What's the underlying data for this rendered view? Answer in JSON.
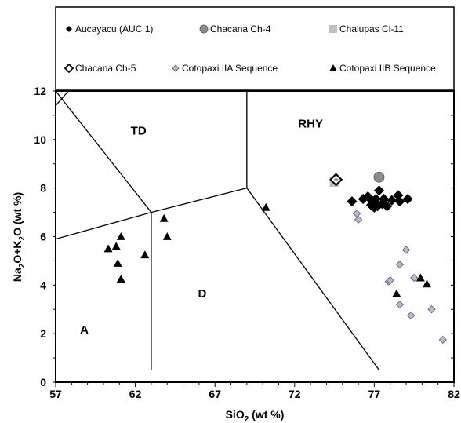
{
  "chart_data": {
    "type": "scatter",
    "xlabel": "SiO2 (wt %)",
    "ylabel": "Na2O+K2O (wt %)",
    "xlim": [
      57,
      82
    ],
    "ylim": [
      0,
      12
    ],
    "x_ticks": [
      "57",
      "62",
      "67",
      "72",
      "77",
      "82"
    ],
    "y_ticks": [
      "0",
      "2",
      "4",
      "6",
      "8",
      "10",
      "12"
    ],
    "grid": false,
    "legend_placement": "top",
    "field_labels": [
      {
        "text": "TD",
        "x": 62.2,
        "y": 10.2
      },
      {
        "text": "RHY",
        "x": 73.0,
        "y": 10.5
      },
      {
        "text": "D",
        "x": 66.2,
        "y": 3.5
      },
      {
        "text": "A",
        "x": 58.8,
        "y": 2.0
      }
    ],
    "field_boundaries": [
      [
        [
          57,
          12
        ],
        [
          63,
          7
        ]
      ],
      [
        [
          57,
          5.9
        ],
        [
          63,
          7
        ]
      ],
      [
        [
          63,
          7
        ],
        [
          63,
          0.5
        ]
      ],
      [
        [
          63,
          7
        ],
        [
          69,
          8
        ]
      ],
      [
        [
          69,
          8
        ],
        [
          69,
          12
        ]
      ],
      [
        [
          69,
          8
        ],
        [
          77.3,
          0.5
        ]
      ],
      [
        [
          57,
          11.4
        ],
        [
          57.8,
          12
        ]
      ]
    ],
    "series": [
      {
        "name": "Aucayacu (AUC 1)",
        "marker": "diamond",
        "color": "#000000",
        "points": [
          [
            75.6,
            7.45
          ],
          [
            76.3,
            7.55
          ],
          [
            76.6,
            7.65
          ],
          [
            76.9,
            7.45
          ],
          [
            77.1,
            7.55
          ],
          [
            77.3,
            7.9
          ],
          [
            77.2,
            7.25
          ],
          [
            77.6,
            7.55
          ],
          [
            77.8,
            7.25
          ],
          [
            78.1,
            7.5
          ],
          [
            78.5,
            7.7
          ],
          [
            78.6,
            7.45
          ],
          [
            79.1,
            7.55
          ],
          [
            77.0,
            7.2
          ],
          [
            77.5,
            7.35
          ],
          [
            76.8,
            7.3
          ]
        ]
      },
      {
        "name": "Chacana Ch-4",
        "marker": "circle",
        "color": "#8c8c8c",
        "points": [
          [
            77.3,
            8.45
          ]
        ]
      },
      {
        "name": "Chalupas Cl-11",
        "marker": "square",
        "color": "#bfbfbf",
        "points": [
          [
            74.5,
            8.25
          ]
        ]
      },
      {
        "name": "Chacana Ch-5",
        "marker": "open-diamond",
        "color": "#9a9a9a",
        "points": [
          [
            74.6,
            8.35
          ]
        ]
      },
      {
        "name": "Cotopaxi IIA Sequence",
        "marker": "small-diamond",
        "color": "#b8b8d8",
        "points": [
          [
            75.9,
            6.95
          ],
          [
            76.0,
            6.7
          ],
          [
            77.9,
            4.15
          ],
          [
            78.0,
            4.2
          ],
          [
            78.6,
            4.85
          ],
          [
            78.6,
            3.2
          ],
          [
            79.0,
            5.45
          ],
          [
            79.3,
            2.75
          ],
          [
            79.5,
            4.3
          ],
          [
            80.6,
            3.0
          ],
          [
            81.3,
            1.75
          ]
        ]
      },
      {
        "name": "Cotopaxi IIB Sequence",
        "marker": "triangle",
        "color": "#000000",
        "points": [
          [
            60.3,
            5.5
          ],
          [
            60.8,
            5.6
          ],
          [
            60.9,
            4.9
          ],
          [
            61.1,
            6.0
          ],
          [
            61.1,
            4.25
          ],
          [
            62.6,
            5.25
          ],
          [
            63.8,
            6.75
          ],
          [
            64.0,
            6.0
          ],
          [
            70.2,
            7.2
          ],
          [
            78.4,
            3.65
          ],
          [
            79.9,
            4.3
          ],
          [
            80.3,
            4.05
          ]
        ]
      }
    ]
  }
}
